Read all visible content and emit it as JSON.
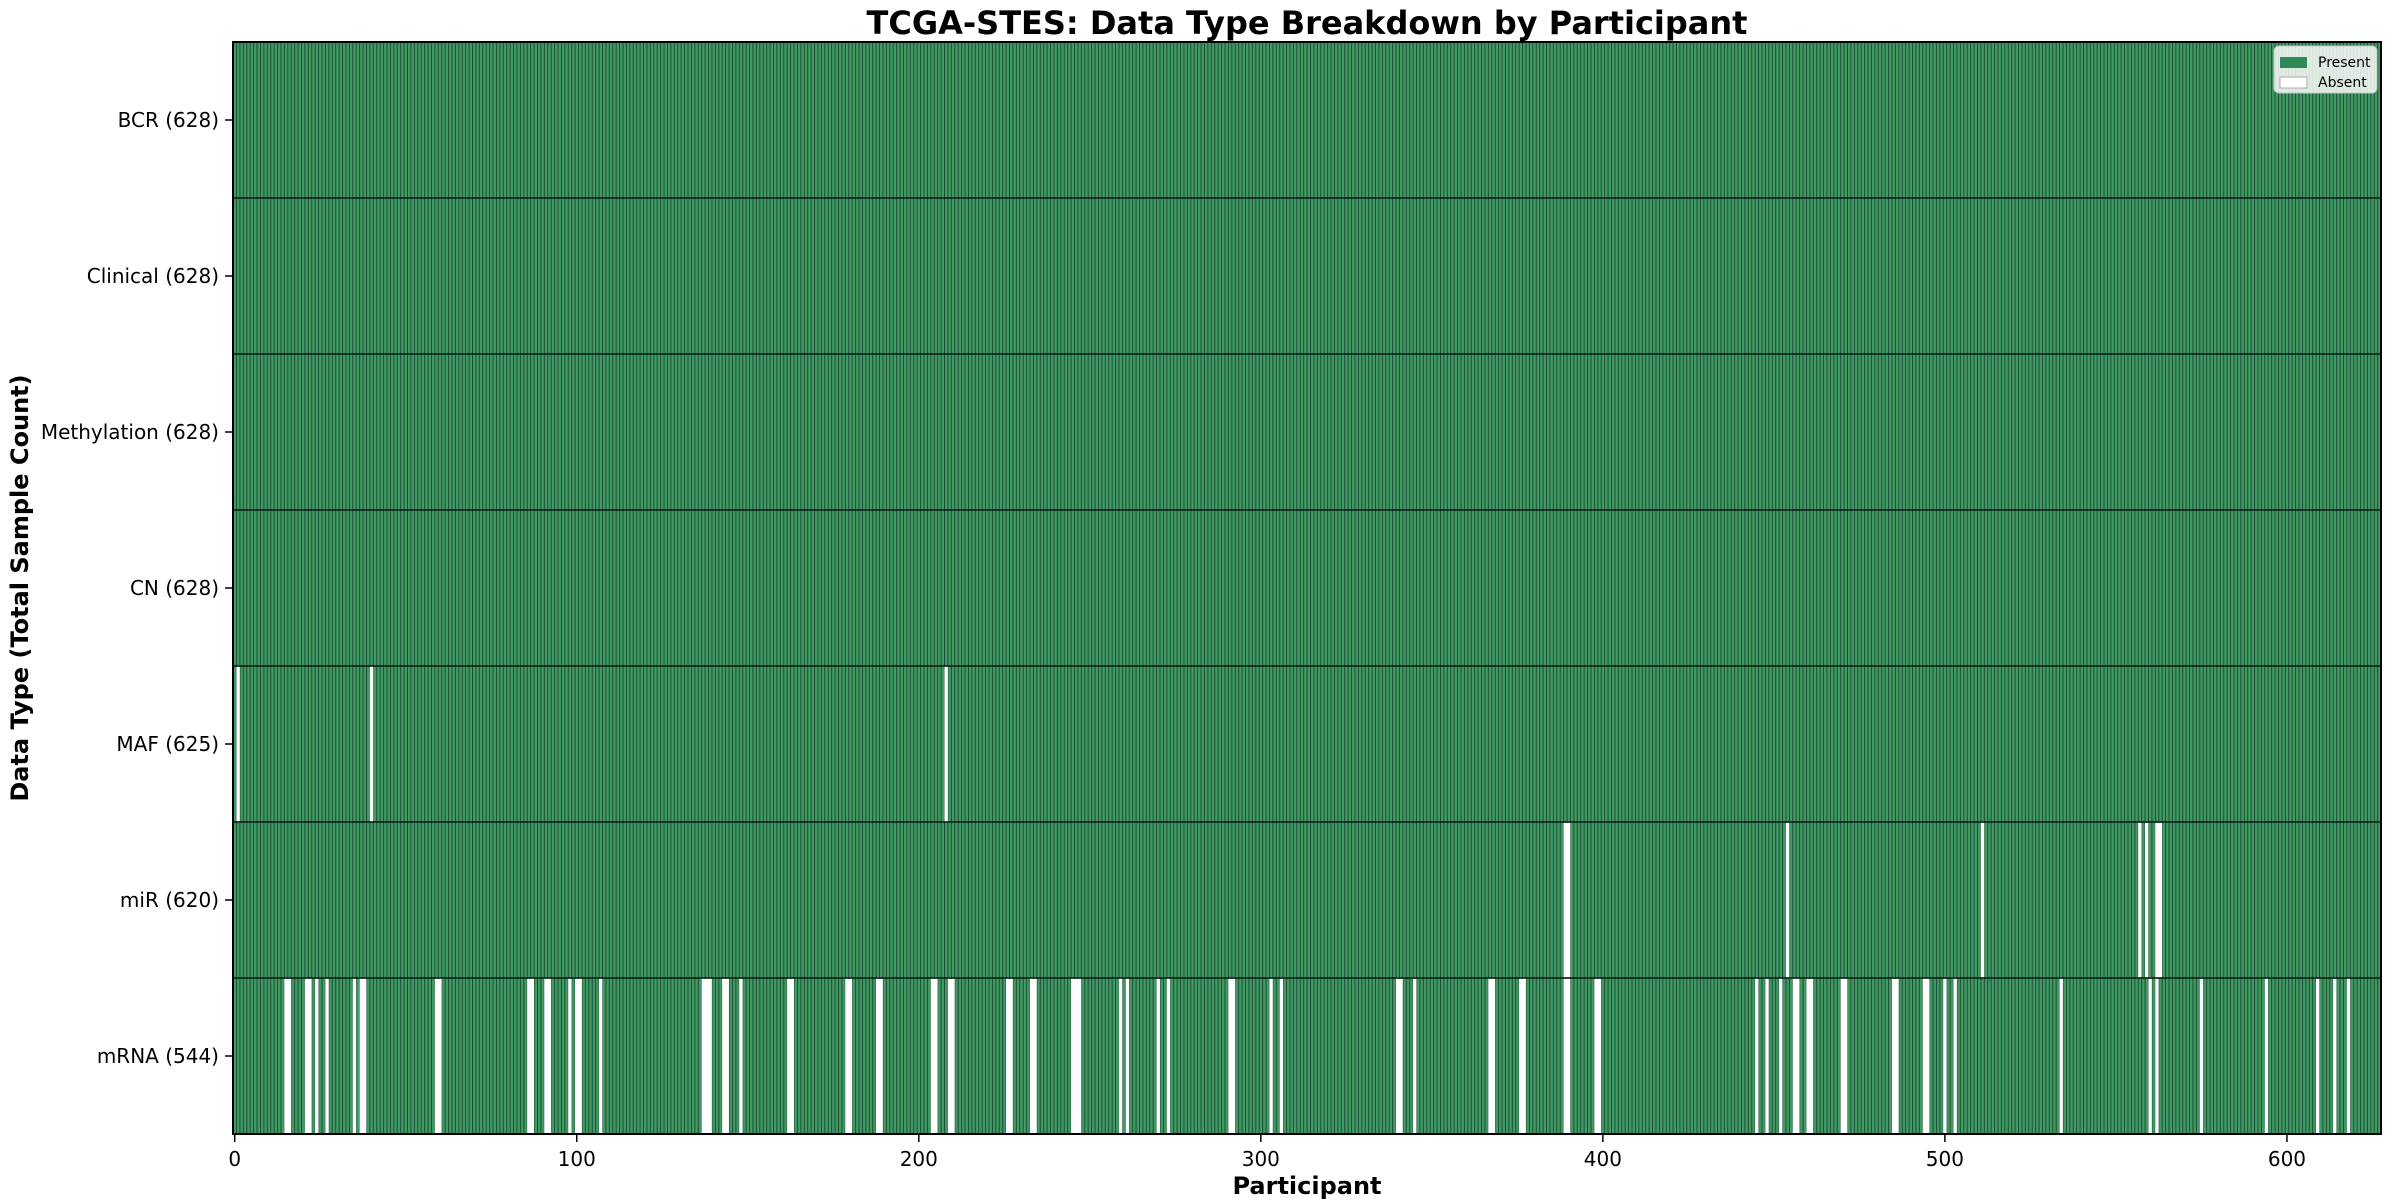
{
  "chart_data": {
    "type": "heatmap",
    "title": "TCGA-STES: Data Type Breakdown by Participant",
    "xlabel": "Participant",
    "ylabel": "Data Type (Total Sample Count)",
    "n_participants": 628,
    "x_ticks": [
      0,
      100,
      200,
      300,
      400,
      500,
      600
    ],
    "legend": [
      "Present",
      "Absent"
    ],
    "legend_position": "upper right",
    "grid": false,
    "colors": {
      "present": "#3f9a64",
      "bar_edge": "#1e4d33",
      "absent": "#ffffff",
      "swatch_green": "#2e8b57",
      "legend_bg": "#fcfcfa",
      "legend_border": "#c8c8c8"
    },
    "rows": [
      {
        "label": "BCR (628)",
        "short": "bcr",
        "count": 628,
        "absent": []
      },
      {
        "label": "Clinical (628)",
        "short": "clinical",
        "count": 628,
        "absent": []
      },
      {
        "label": "Methylation (628)",
        "short": "methylation",
        "count": 628,
        "absent": []
      },
      {
        "label": "CN (628)",
        "short": "cn",
        "count": 628,
        "absent": []
      },
      {
        "label": "MAF (625)",
        "short": "maf",
        "count": 625,
        "absent": [
          1,
          40,
          208
        ]
      },
      {
        "label": "miR (620)",
        "short": "mir",
        "count": 620,
        "absent": [
          389,
          390,
          454,
          511,
          557,
          559,
          562,
          563
        ]
      },
      {
        "label": "mRNA (544)",
        "short": "mrna",
        "count": 544,
        "absent": [
          15,
          16,
          21,
          22,
          24,
          27,
          35,
          37,
          38,
          59,
          60,
          86,
          87,
          91,
          92,
          98,
          100,
          101,
          107,
          137,
          138,
          139,
          143,
          144,
          148,
          162,
          163,
          179,
          180,
          188,
          189,
          204,
          205,
          209,
          210,
          226,
          227,
          233,
          234,
          245,
          246,
          247,
          259,
          261,
          270,
          273,
          291,
          292,
          303,
          306,
          340,
          341,
          345,
          367,
          368,
          376,
          377,
          389,
          390,
          398,
          399,
          445,
          448,
          452,
          456,
          457,
          460,
          461,
          470,
          471,
          485,
          486,
          494,
          495,
          500,
          503,
          534,
          560,
          562,
          575,
          594,
          609,
          614,
          618
        ]
      }
    ]
  }
}
